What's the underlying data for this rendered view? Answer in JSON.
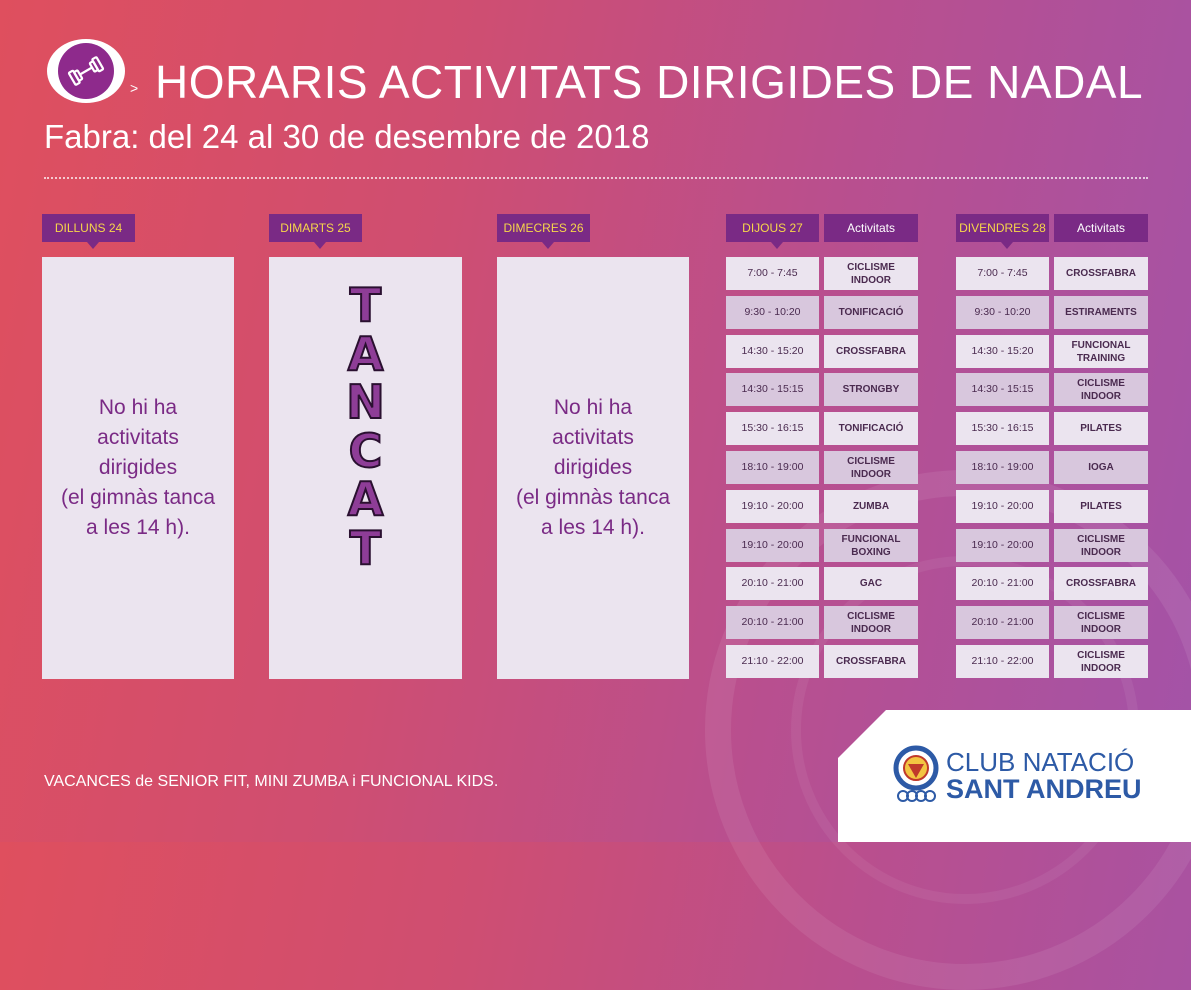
{
  "header": {
    "arrow": ">",
    "title": "HORARIS ACTIVITATS DIRIGIDES DE NADAL",
    "subtitle": "Fabra: del 24 al 30 de desembre de 2018"
  },
  "days": {
    "mon": {
      "label": "DILLUNS 24",
      "text": "No hi ha\nactivitats\ndirigides\n(el gimnàs tanca\na les 14 h)."
    },
    "tue": {
      "label": "DIMARTS 25",
      "letters": [
        "T",
        "A",
        "N",
        "C",
        "A",
        "T"
      ]
    },
    "wed": {
      "label": "DIMECRES 26",
      "text": "No hi ha\nactivitats\ndirigides\n(el gimnàs tanca\na les 14 h)."
    },
    "thu": {
      "label": "DIJOUS 27",
      "activity_header": "Activitats",
      "rows": [
        {
          "time": "7:00 - 7:45",
          "activity": "CICLISME\nINDOOR"
        },
        {
          "time": "9:30 - 10:20",
          "activity": "TONIFICACIÓ"
        },
        {
          "time": "14:30 - 15:20",
          "activity": "CROSSFABRA"
        },
        {
          "time": "14:30 - 15:15",
          "activity": "STRONGBY"
        },
        {
          "time": "15:30 - 16:15",
          "activity": "TONIFICACIÓ"
        },
        {
          "time": "18:10 - 19:00",
          "activity": "CICLISME\nINDOOR"
        },
        {
          "time": "19:10 - 20:00",
          "activity": "ZUMBA"
        },
        {
          "time": "19:10 - 20:00",
          "activity": "FUNCIONAL\nBOXING"
        },
        {
          "time": "20:10 - 21:00",
          "activity": "GAC"
        },
        {
          "time": "20:10 - 21:00",
          "activity": "CICLISME\nINDOOR"
        },
        {
          "time": "21:10 - 22:00",
          "activity": "CROSSFABRA"
        }
      ]
    },
    "fri": {
      "label": "DIVENDRES 28",
      "activity_header": "Activitats",
      "rows": [
        {
          "time": "7:00 - 7:45",
          "activity": "CROSSFABRA"
        },
        {
          "time": "9:30 - 10:20",
          "activity": "ESTIRAMENTS"
        },
        {
          "time": "14:30 - 15:20",
          "activity": "FUNCIONAL\nTRAINING"
        },
        {
          "time": "14:30 - 15:15",
          "activity": "CICLISME\nINDOOR"
        },
        {
          "time": "15:30 - 16:15",
          "activity": "PILATES"
        },
        {
          "time": "18:10 - 19:00",
          "activity": "IOGA"
        },
        {
          "time": "19:10 - 20:00",
          "activity": "PILATES"
        },
        {
          "time": "19:10 - 20:00",
          "activity": "CICLISME\nINDOOR"
        },
        {
          "time": "20:10 - 21:00",
          "activity": "CROSSFABRA"
        },
        {
          "time": "20:10 - 21:00",
          "activity": "CICLISME\nINDOOR"
        },
        {
          "time": "21:10 - 22:00",
          "activity": "CICLISME\nINDOOR"
        }
      ]
    }
  },
  "footer": {
    "vacances": "VACANCES de SENIOR FIT, MINI ZUMBA i FUNCIONAL KIDS.",
    "club_line1": "CLUB NATACIÓ",
    "club_line2": "SANT ANDREU"
  },
  "icons": {
    "logo": "dumbbell-icon",
    "club_emblem": "club-emblem-icon"
  },
  "colors": {
    "accent_purple": "#7a2a85",
    "day_label_yellow": "#f7d64a",
    "club_blue": "#2d5aa6"
  }
}
